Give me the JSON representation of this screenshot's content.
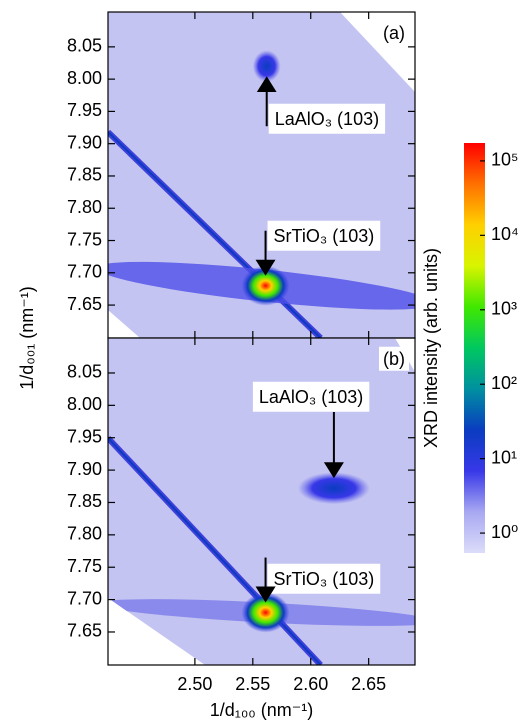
{
  "ylabel": "1/d₀₀₁ (nm⁻¹)",
  "colorbar": {
    "label": "XRD intensity (arb. units)",
    "log": true,
    "lim": [
      0.54,
      174000
    ],
    "ticks": [
      {
        "value": 1,
        "label": "10⁰"
      },
      {
        "value": 10,
        "label": "10¹"
      },
      {
        "value": 100,
        "label": "10²"
      },
      {
        "value": 1000,
        "label": "10³"
      },
      {
        "value": 10000,
        "label": "10⁴"
      },
      {
        "value": 100000,
        "label": "10⁵"
      }
    ],
    "colors": [
      "#dcdcfa",
      "#a8a8f2",
      "#3838e8",
      "#0a3cc0",
      "#0090a0",
      "#00c860",
      "#40e800",
      "#d8f400",
      "#ffd000",
      "#ff7000",
      "#ff0000"
    ]
  },
  "chart_data": [
    {
      "type": "heatmap",
      "panel_label": "(a)",
      "xlim": [
        2.425,
        2.69
      ],
      "ylim": [
        7.599,
        8.104
      ],
      "xticks": [
        2.5,
        2.55,
        2.6,
        2.65
      ],
      "yticks": [
        7.65,
        {
          "value": 7.7,
          "label": "7.70"
        },
        7.75,
        {
          "value": 7.8,
          "label": "7.80"
        },
        7.85,
        {
          "value": 7.9,
          "label": "7.90"
        },
        7.95,
        {
          "value": 8.0,
          "label": "8.00"
        },
        8.05
      ],
      "annotations": [
        {
          "text": "LaAlO₃ (103)",
          "x": 2.562,
          "y": 8.02
        },
        {
          "text": "SrTiO₃ (103)",
          "x": 2.561,
          "y": 7.68
        }
      ]
    },
    {
      "type": "heatmap",
      "panel_label": "(b)",
      "xlim": [
        2.425,
        2.69
      ],
      "ylim": [
        7.599,
        8.104
      ],
      "xlabel": "1/d₁₀₀ (nm⁻¹)",
      "xticks": [
        {
          "value": 2.5,
          "label": "2.50"
        },
        2.55,
        {
          "value": 2.6,
          "label": "2.60"
        },
        2.65
      ],
      "yticks": [
        7.65,
        {
          "value": 7.7,
          "label": "7.70"
        },
        7.75,
        {
          "value": 7.8,
          "label": "7.80"
        },
        7.85,
        {
          "value": 7.9,
          "label": "7.90"
        },
        7.95,
        {
          "value": 8.0,
          "label": "8.00"
        },
        8.05
      ],
      "annotations": [
        {
          "text": "LaAlO₃ (103)",
          "x": 2.62,
          "y": 7.872
        },
        {
          "text": "SrTiO₃ (103)",
          "x": 2.561,
          "y": 7.68
        }
      ]
    }
  ]
}
